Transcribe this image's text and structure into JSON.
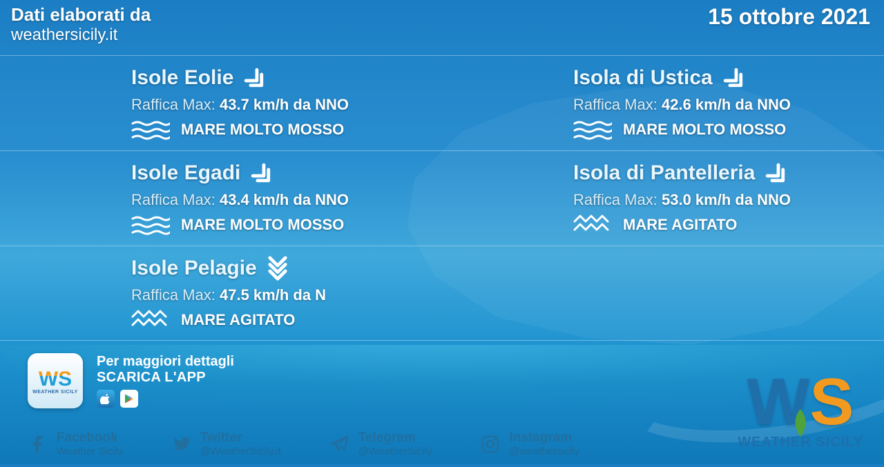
{
  "header": {
    "source_label": "Dati elaborati da",
    "source_site": "weathersicily.it",
    "date": "15 ottobre 2021"
  },
  "gust_label": "Raffica Max:",
  "locations": [
    {
      "name": "Isole Eolie",
      "gust_value": "43.7 km/h da NNO",
      "sea": "MARE MOLTO MOSSO",
      "sea_level": "molto",
      "wind_arrow_rotation": 135,
      "wind_arrow_type": "double"
    },
    {
      "name": "Isola di Ustica",
      "gust_value": "42.6 km/h da NNO",
      "sea": "MARE MOLTO MOSSO",
      "sea_level": "molto",
      "wind_arrow_rotation": 135,
      "wind_arrow_type": "double"
    },
    {
      "name": "Isole Egadi",
      "gust_value": "43.4 km/h da NNO",
      "sea": "MARE MOLTO MOSSO",
      "sea_level": "molto",
      "wind_arrow_rotation": 135,
      "wind_arrow_type": "double"
    },
    {
      "name": "Isola di Pantelleria",
      "gust_value": "53.0 km/h da NNO",
      "sea": "MARE AGITATO",
      "sea_level": "agitato",
      "wind_arrow_rotation": 135,
      "wind_arrow_type": "double"
    },
    {
      "name": "Isole Pelagie",
      "gust_value": "47.5 km/h da N",
      "sea": "MARE AGITATO",
      "sea_level": "agitato",
      "wind_arrow_rotation": 180,
      "wind_arrow_type": "triple"
    }
  ],
  "app": {
    "line1": "Per maggiori dettagli",
    "line2": "SCARICA L'APP",
    "logo_text": "WS",
    "logo_sub": "WEATHER SICILY"
  },
  "socials": [
    {
      "icon": "facebook",
      "name": "Facebook",
      "handle": "Weather Sicily"
    },
    {
      "icon": "twitter",
      "name": "Twitter",
      "handle": "@WeatherSicily.it"
    },
    {
      "icon": "telegram",
      "name": "Telegram",
      "handle": "@WeatherSicily"
    },
    {
      "icon": "instagram",
      "name": "Instagram",
      "handle": "@weathersicily"
    }
  ],
  "brand": {
    "name": "WEATHER SICILY"
  },
  "colors": {
    "text": "#ffffff",
    "accent_orange": "#f29a1f",
    "accent_blue": "#1f6fab",
    "divider": "rgba(255,255,255,0.35)"
  }
}
